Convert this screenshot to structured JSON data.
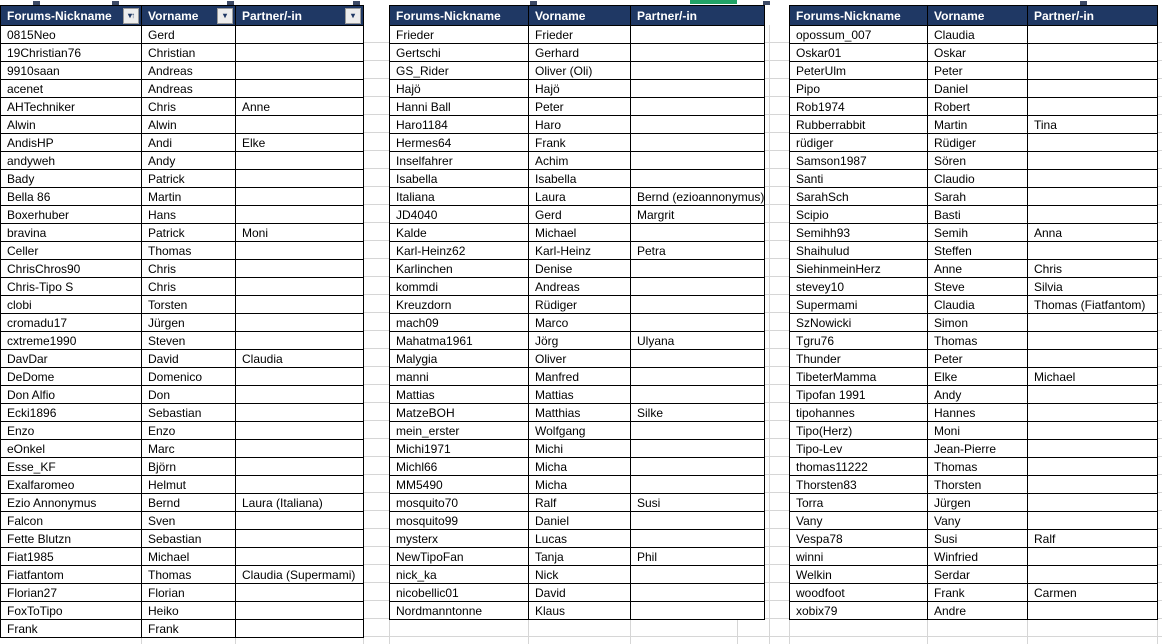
{
  "app": {
    "type": "spreadsheet-member-list"
  },
  "colors": {
    "header_bg": "#1F3864",
    "header_text": "#FFFFFF",
    "cell_border": "#000000",
    "gridline": "#D6D6D6",
    "remnant_green": "#21A366"
  },
  "column_labels": [
    "Forums-Nickname",
    "Vorname",
    "Partner/-in"
  ],
  "tables": [
    {
      "headers": [
        {
          "label": "Forums-Nickname",
          "filter_icon": "sort-filter-icon"
        },
        {
          "label": "Vorname",
          "filter_icon": "filter-dropdown-icon"
        },
        {
          "label": "Partner/-in",
          "filter_icon": "filter-dropdown-icon"
        }
      ],
      "rows": [
        [
          "0815Neo",
          "Gerd",
          ""
        ],
        [
          "19Christian76",
          "Christian",
          ""
        ],
        [
          "9910saan",
          "Andreas",
          ""
        ],
        [
          "acenet",
          "Andreas",
          ""
        ],
        [
          "AHTechniker",
          "Chris",
          "Anne"
        ],
        [
          "Alwin",
          "Alwin",
          ""
        ],
        [
          "AndisHP",
          "Andi",
          "Elke"
        ],
        [
          "andyweh",
          "Andy",
          ""
        ],
        [
          "Bady",
          "Patrick",
          ""
        ],
        [
          "Bella 86",
          "Martin",
          ""
        ],
        [
          "Boxerhuber",
          "Hans",
          ""
        ],
        [
          "bravina",
          "Patrick",
          "Moni"
        ],
        [
          "Celler",
          "Thomas",
          ""
        ],
        [
          "ChrisChros90",
          "Chris",
          ""
        ],
        [
          "Chris-Tipo S",
          "Chris",
          ""
        ],
        [
          "clobi",
          "Torsten",
          ""
        ],
        [
          "cromadu17",
          "Jürgen",
          ""
        ],
        [
          "cxtreme1990",
          "Steven",
          ""
        ],
        [
          "DavDar",
          "David",
          "Claudia"
        ],
        [
          "DeDome",
          "Domenico",
          ""
        ],
        [
          "Don Alfio",
          "Don",
          ""
        ],
        [
          "Ecki1896",
          "Sebastian",
          ""
        ],
        [
          "Enzo",
          "Enzo",
          ""
        ],
        [
          "eOnkel",
          "Marc",
          ""
        ],
        [
          "Esse_KF",
          "Björn",
          ""
        ],
        [
          "Exalfaromeo",
          "Helmut",
          ""
        ],
        [
          "Ezio Annonymus",
          "Bernd",
          "Laura (Italiana)"
        ],
        [
          "Falcon",
          "Sven",
          ""
        ],
        [
          "Fette Blutzn",
          "Sebastian",
          ""
        ],
        [
          "Fiat1985",
          "Michael",
          ""
        ],
        [
          "Fiatfantom",
          "Thomas",
          "Claudia (Supermami)"
        ],
        [
          "Florian27",
          "Florian",
          ""
        ],
        [
          "FoxToTipo",
          "Heiko",
          ""
        ],
        [
          "Frank",
          "Frank",
          ""
        ]
      ]
    },
    {
      "headers": [
        {
          "label": "Forums-Nickname"
        },
        {
          "label": "Vorname"
        },
        {
          "label": "Partner/-in"
        }
      ],
      "rows": [
        [
          "Frieder",
          "Frieder",
          ""
        ],
        [
          "Gertschi",
          "Gerhard",
          ""
        ],
        [
          "GS_Rider",
          "Oliver (Oli)",
          ""
        ],
        [
          "Hajö",
          "Hajö",
          ""
        ],
        [
          "Hanni Ball",
          "Peter",
          ""
        ],
        [
          "Haro1184",
          "Haro",
          ""
        ],
        [
          "Hermes64",
          "Frank",
          ""
        ],
        [
          "Inselfahrer",
          "Achim",
          ""
        ],
        [
          "Isabella",
          "Isabella",
          ""
        ],
        [
          "Italiana",
          "Laura",
          "Bernd (ezioannonymus)"
        ],
        [
          "JD4040",
          "Gerd",
          "Margrit"
        ],
        [
          "Kalde",
          "Michael",
          ""
        ],
        [
          "Karl-Heinz62",
          "Karl-Heinz",
          "Petra"
        ],
        [
          "Karlinchen",
          "Denise",
          ""
        ],
        [
          "kommdi",
          "Andreas",
          ""
        ],
        [
          "Kreuzdorn",
          "Rüdiger",
          ""
        ],
        [
          "mach09",
          "Marco",
          ""
        ],
        [
          "Mahatma1961",
          "Jörg",
          "Ulyana"
        ],
        [
          "Malygia",
          "Oliver",
          ""
        ],
        [
          "manni",
          "Manfred",
          ""
        ],
        [
          "Mattias",
          "Mattias",
          ""
        ],
        [
          "MatzeBOH",
          "Matthias",
          "Silke"
        ],
        [
          "mein_erster",
          "Wolfgang",
          ""
        ],
        [
          "Michi1971",
          "Michi",
          ""
        ],
        [
          "Michl66",
          "Micha",
          ""
        ],
        [
          "MM5490",
          "Micha",
          ""
        ],
        [
          "mosquito70",
          "Ralf",
          "Susi"
        ],
        [
          "mosquito99",
          "Daniel",
          ""
        ],
        [
          "mysterx",
          "Lucas",
          ""
        ],
        [
          "NewTipoFan",
          "Tanja",
          "Phil"
        ],
        [
          "nick_ka",
          "Nick",
          ""
        ],
        [
          "nicobellic01",
          "David",
          ""
        ],
        [
          "Nordmanntonne",
          "Klaus",
          ""
        ]
      ]
    },
    {
      "headers": [
        {
          "label": "Forums-Nickname"
        },
        {
          "label": "Vorname"
        },
        {
          "label": "Partner/-in"
        }
      ],
      "rows": [
        [
          "opossum_007",
          "Claudia",
          ""
        ],
        [
          "Oskar01",
          "Oskar",
          ""
        ],
        [
          "PeterUlm",
          "Peter",
          ""
        ],
        [
          "Pipo",
          "Daniel",
          ""
        ],
        [
          "Rob1974",
          "Robert",
          ""
        ],
        [
          "Rubberrabbit",
          "Martin",
          "Tina"
        ],
        [
          "rüdiger",
          "Rüdiger",
          ""
        ],
        [
          "Samson1987",
          "Sören",
          ""
        ],
        [
          "Santi",
          "Claudio",
          ""
        ],
        [
          "SarahSch",
          "Sarah",
          ""
        ],
        [
          "Scipio",
          "Basti",
          ""
        ],
        [
          "Semihh93",
          "Semih",
          "Anna"
        ],
        [
          "Shaihulud",
          "Steffen",
          ""
        ],
        [
          "SiehinmeinHerz",
          "Anne",
          "Chris"
        ],
        [
          "stevey10",
          "Steve",
          "Silvia"
        ],
        [
          "Supermami",
          "Claudia",
          "Thomas (Fiatfantom)"
        ],
        [
          "SzNowicki",
          "Simon",
          ""
        ],
        [
          "Tgru76",
          "Thomas",
          ""
        ],
        [
          "Thunder",
          "Peter",
          ""
        ],
        [
          "TibeterMamma",
          "Elke",
          "Michael"
        ],
        [
          "Tipofan 1991",
          "Andy",
          ""
        ],
        [
          "tipohannes",
          "Hannes",
          ""
        ],
        [
          "Tipo(Herz)",
          "Moni",
          ""
        ],
        [
          "Tipo-Lev",
          "Jean-Pierre",
          ""
        ],
        [
          "thomas11222",
          "Thomas",
          ""
        ],
        [
          "Thorsten83",
          "Thorsten",
          ""
        ],
        [
          "Torra",
          "Jürgen",
          ""
        ],
        [
          "Vany",
          "Vany",
          ""
        ],
        [
          "Vespa78",
          "Susi",
          "Ralf"
        ],
        [
          "winni",
          "Winfried",
          ""
        ],
        [
          "Welkin",
          "Serdar",
          ""
        ],
        [
          "woodfoot",
          "Frank",
          "Carmen"
        ],
        [
          "xobix79",
          "Andre",
          ""
        ]
      ]
    }
  ]
}
